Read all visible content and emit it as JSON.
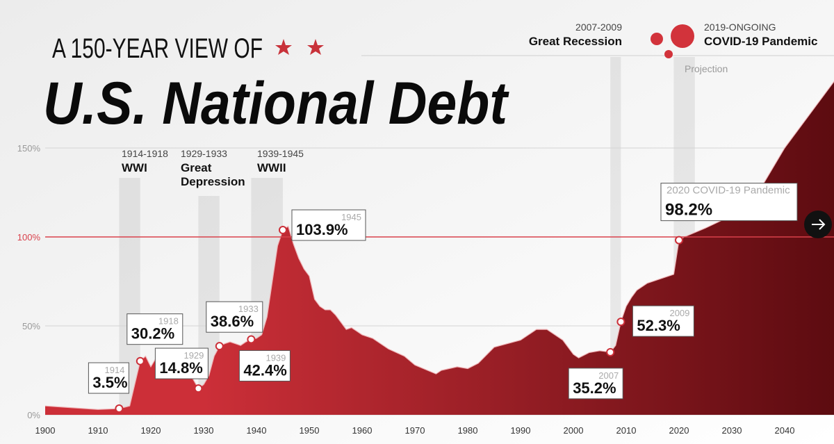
{
  "chart_data": {
    "type": "area",
    "subtitle": "A 150-YEAR VIEW OF",
    "title": "U.S. National Debt",
    "color": "#cc2f38",
    "color_end": "#5c0b10",
    "x": [
      1900,
      1905,
      1910,
      1914,
      1916,
      1918,
      1919,
      1920,
      1921,
      1922,
      1925,
      1928,
      1929,
      1930,
      1931,
      1932,
      1933,
      1934,
      1935,
      1936,
      1937,
      1938,
      1939,
      1940,
      1941,
      1942,
      1943,
      1944,
      1945,
      1946,
      1947,
      1948,
      1949,
      1950,
      1951,
      1952,
      1953,
      1954,
      1955,
      1956,
      1957,
      1958,
      1959,
      1960,
      1962,
      1965,
      1968,
      1970,
      1974,
      1975,
      1978,
      1980,
      1982,
      1985,
      1990,
      1993,
      1995,
      1998,
      2000,
      2001,
      2003,
      2005,
      2007,
      2008,
      2009,
      2010,
      2011,
      2012,
      2014,
      2016,
      2019,
      2020,
      2021,
      2025,
      2030,
      2035,
      2040,
      2045,
      2050
    ],
    "values": [
      5,
      4,
      3,
      3.5,
      5,
      30.2,
      33,
      27,
      32,
      28,
      27,
      20,
      14.8,
      17,
      22,
      33,
      38.6,
      40,
      41,
      40,
      39,
      41,
      42.4,
      43,
      45,
      55,
      75,
      95,
      103.9,
      106,
      96,
      88,
      82,
      78,
      65,
      61,
      59,
      59,
      56,
      52,
      48,
      49,
      47,
      45,
      43,
      37,
      33,
      28,
      23,
      25,
      27,
      26,
      29,
      38,
      42,
      48,
      48,
      42,
      34,
      32,
      35,
      36,
      35.2,
      39,
      52.3,
      61,
      66,
      70,
      74,
      76,
      79,
      98.2,
      100,
      105,
      112,
      125,
      150,
      170,
      190
    ],
    "xlim": [
      1900,
      2050
    ],
    "xticks": [
      1900,
      1910,
      1920,
      1930,
      1940,
      1950,
      1960,
      1970,
      1980,
      1990,
      2000,
      2010,
      2020,
      2030,
      2040
    ],
    "ylim": [
      0,
      150
    ],
    "yticks": [
      {
        "value": 0,
        "label": "0%"
      },
      {
        "value": 50,
        "label": "50%"
      },
      {
        "value": 100,
        "label": "100%"
      },
      {
        "value": 150,
        "label": "150%"
      }
    ],
    "grid": true,
    "reference_line": {
      "value": 100,
      "color": "#d9414b"
    },
    "projection_label": "Projection",
    "events": [
      {
        "years": "1914-1918",
        "name_lines": [
          "WWI"
        ],
        "start": 1914,
        "end": 1918
      },
      {
        "years": "1929-1933",
        "name_lines": [
          "Great",
          "Depression"
        ],
        "start": 1929,
        "end": 1933
      },
      {
        "years": "1939-1945",
        "name_lines": [
          "WWII"
        ],
        "start": 1939,
        "end": 1945
      },
      {
        "years": "2007-2009",
        "name_lines": [
          "Great Recession"
        ],
        "start": 2007,
        "end": 2009
      },
      {
        "years": "2019-ONGOING",
        "name_lines": [
          "COVID-19 Pandemic"
        ],
        "start": 2019,
        "end": 2023
      }
    ],
    "annotations": [
      {
        "x_label": "1914",
        "x": 1914,
        "value": 3.5,
        "value_label": "3.5%"
      },
      {
        "x_label": "1918",
        "x": 1918,
        "value": 30.2,
        "value_label": "30.2%"
      },
      {
        "x_label": "1929",
        "x": 1929,
        "value": 14.8,
        "value_label": "14.8%"
      },
      {
        "x_label": "1933",
        "x": 1933,
        "value": 38.6,
        "value_label": "38.6%"
      },
      {
        "x_label": "1939",
        "x": 1939,
        "value": 42.4,
        "value_label": "42.4%"
      },
      {
        "x_label": "1945",
        "x": 1945,
        "value": 103.9,
        "value_label": "103.9%"
      },
      {
        "x_label": "2007",
        "x": 2007,
        "value": 35.2,
        "value_label": "35.2%"
      },
      {
        "x_label": "2009",
        "x": 2009,
        "value": 52.3,
        "value_label": "52.3%"
      },
      {
        "x_label": "2020 COVID-19 Pandemic",
        "x": 2020,
        "value": 98.2,
        "value_label": "98.2%"
      }
    ]
  }
}
